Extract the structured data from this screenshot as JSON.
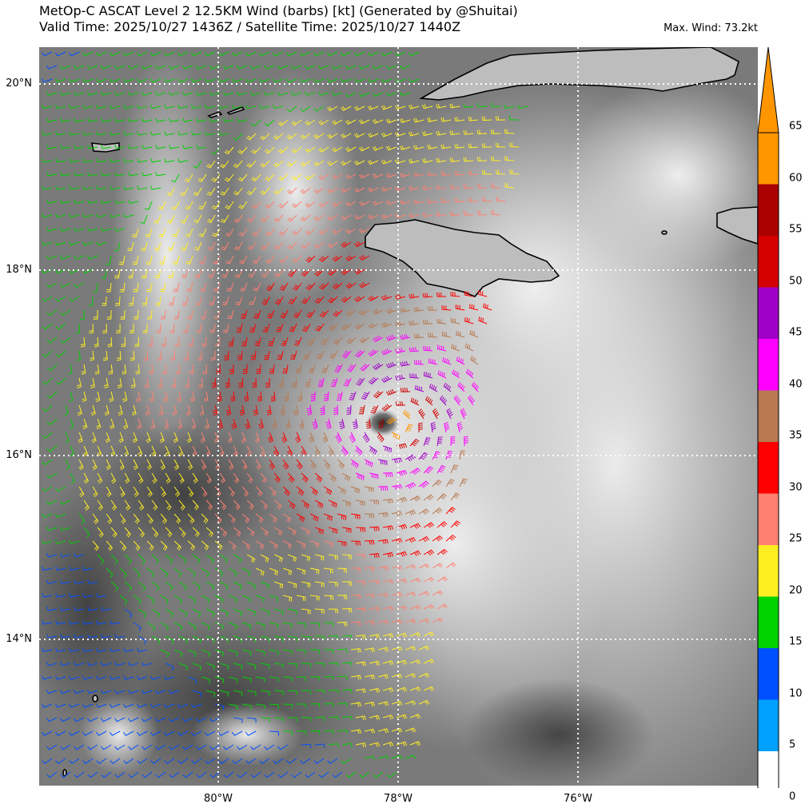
{
  "title_line1": "MetOp-C ASCAT Level 2 12.5KM Wind (barbs) [kt] (Generated by @Shuitai)",
  "title_line2": "Valid Time: 2025/10/27 1436Z / Satellite Time: 2025/10/27 1440Z",
  "max_wind": "Max. Wind: 73.2kt",
  "lat_labels": [
    "20°N",
    "18°N",
    "16°N",
    "14°N"
  ],
  "lon_labels": [
    "80°W",
    "78°W",
    "76°W"
  ],
  "colorbar": {
    "levels": [
      "0",
      "5",
      "10",
      "15",
      "20",
      "25",
      "30",
      "35",
      "40",
      "45",
      "50",
      "55",
      "60",
      "65"
    ],
    "colors": [
      "#ffffff",
      "#00a0ff",
      "#0050ff",
      "#00d200",
      "#ffee22",
      "#ff8070",
      "#ff0000",
      "#b87850",
      "#ff00ff",
      "#a000c8",
      "#d20000",
      "#aa0000",
      "#ff9600"
    ]
  },
  "map": {
    "projection_extent": {
      "lon_min": -82.0,
      "lon_max": -74.0,
      "lat_min": 12.4,
      "lat_max": 20.4
    },
    "storm_center": {
      "lat": 16.3,
      "lon": -78.0
    }
  }
}
